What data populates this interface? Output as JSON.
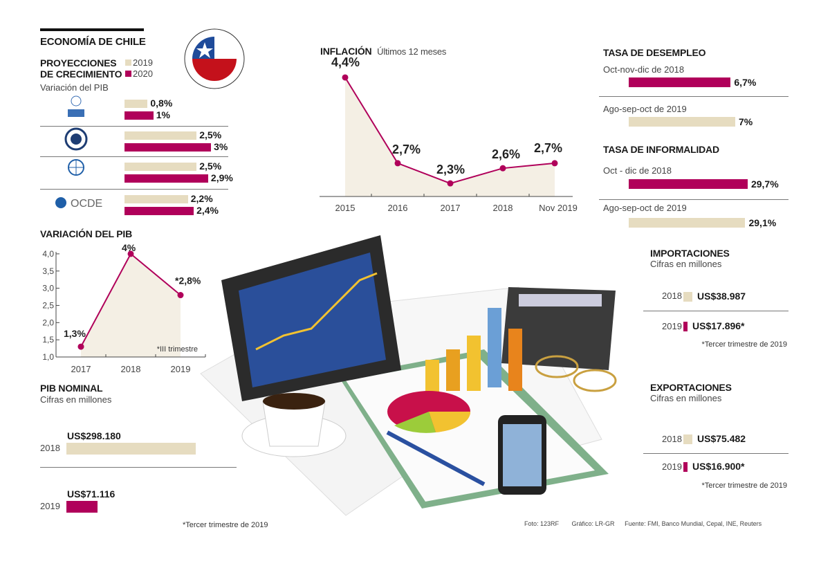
{
  "title": "ECONOMÍA DE CHILE",
  "colors": {
    "y2019": "#e6dcc0",
    "y2020": "#b0005a"
  },
  "proyecciones": {
    "title_line1": "PROYECCIONES",
    "title_line2": "DE CRECIMIENTO",
    "subtitle": "Variación del PIB",
    "legend": [
      "2019",
      "2020"
    ],
    "orgs": [
      {
        "name": "CEPAL",
        "logo": "un-cepal-logo",
        "v2019": 0.8,
        "v2020": 1,
        "l2019": "0,8%",
        "l2020": "1%"
      },
      {
        "name": "FMI",
        "logo": "imf-seal-logo",
        "v2019": 2.5,
        "v2020": 3,
        "l2019": "2,5%",
        "l2020": "3%"
      },
      {
        "name": "Banco Mundial",
        "logo": "world-bank-globe-logo",
        "v2019": 2.5,
        "v2020": 2.9,
        "l2019": "2,5%",
        "l2020": "2,9%"
      },
      {
        "name": "OCDE",
        "logo": "oecd-logo",
        "v2019": 2.2,
        "v2020": 2.4,
        "l2019": "2,2%",
        "l2020": "2,4%"
      }
    ]
  },
  "chart_data": [
    {
      "type": "line",
      "title": "INFLACIÓN",
      "subtitle": "Últimos 12 meses",
      "categories": [
        "2015",
        "2016",
        "2017",
        "2018",
        "Nov  2019"
      ],
      "values": [
        4.4,
        2.7,
        2.3,
        2.6,
        2.7
      ],
      "labels": [
        "4,4%",
        "2,7%",
        "2,3%",
        "2,6%",
        "2,7%"
      ]
    },
    {
      "type": "line",
      "title": "VARIACIÓN DEL PIB",
      "categories": [
        "2017",
        "2018",
        "2019"
      ],
      "values": [
        1.3,
        4.0,
        2.8
      ],
      "labels": [
        "1,3%",
        "4%",
        "*2,8%"
      ],
      "yticks": [
        "1,0",
        "1,5",
        "2,0",
        "2,5",
        "3,0",
        "3,5",
        "4,0"
      ],
      "ylim": [
        1.0,
        4.0
      ],
      "note": "*III trimestre"
    },
    {
      "type": "bar",
      "title": "PIB NOMINAL",
      "subtitle": "Cifras en millones",
      "categories": [
        "2018",
        "2019"
      ],
      "values": [
        298180,
        71116
      ],
      "labels": [
        "US$298.180",
        "US$71.116"
      ],
      "note": "*Tercer trimestre de 2019"
    },
    {
      "type": "bar",
      "title": "TASA DE DESEMPLEO",
      "categories": [
        "Oct-nov-dic de 2018",
        "Ago-sep-oct de 2019"
      ],
      "values": [
        6.7,
        7
      ],
      "labels": [
        "6,7%",
        "7%"
      ]
    },
    {
      "type": "bar",
      "title": "TASA DE INFORMALIDAD",
      "categories": [
        "Oct - dic de 2018",
        "Ago-sep-oct de 2019"
      ],
      "values": [
        29.7,
        29.1
      ],
      "labels": [
        "29,7%",
        "29,1%"
      ]
    },
    {
      "type": "bar",
      "title": "IMPORTACIONES",
      "subtitle": "Cifras en millones",
      "categories": [
        "2018",
        "2019"
      ],
      "values": [
        38987,
        17896
      ],
      "labels": [
        "US$38.987",
        "US$17.896*"
      ],
      "note": "*Tercer trimestre de 2019"
    },
    {
      "type": "bar",
      "title": "EXPORTACIONES",
      "subtitle": "Cifras en millones",
      "categories": [
        "2018",
        "2019"
      ],
      "values": [
        75482,
        16900
      ],
      "labels": [
        "US$75.482",
        "US$16.900*"
      ],
      "note": "*Tercer trimestre de 2019"
    }
  ],
  "footer": {
    "photo": "Foto: 123RF",
    "graphic": "Gráfico: LR-GR",
    "source": "Fuente: FMI, Banco Mundial, Cepal, INE, Reuters"
  }
}
